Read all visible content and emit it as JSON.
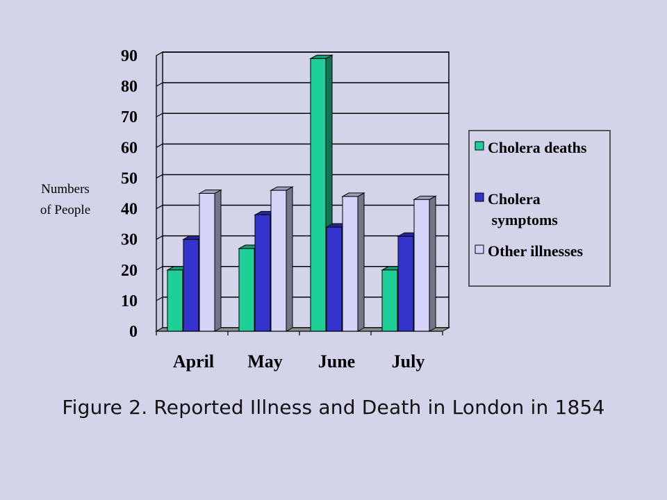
{
  "chart_data": {
    "type": "bar",
    "categories": [
      "April",
      "May",
      "June",
      "July"
    ],
    "series": [
      {
        "name": "Cholera deaths",
        "values": [
          20,
          27,
          89,
          20
        ],
        "color": "#1fcf98"
      },
      {
        "name": "Cholera symptoms",
        "values": [
          30,
          38,
          34,
          31
        ],
        "color": "#3434cc"
      },
      {
        "name": "Other illnesses",
        "values": [
          45,
          46,
          44,
          43
        ],
        "color": "#d4d4f8"
      }
    ],
    "ylim": [
      0,
      90
    ],
    "yticks": [
      "0",
      "10",
      "20",
      "30",
      "40",
      "50",
      "60",
      "70",
      "80",
      "90"
    ],
    "ylabel": [
      "Numbers",
      "of People"
    ],
    "legend_lines": [
      [
        "Cholera deaths"
      ],
      [
        "Cholera",
        "symptoms"
      ],
      [
        "Other illnesses"
      ]
    ],
    "legend_position": "right",
    "grid": true,
    "caption": "Figure 2. Reported Illness and Death in London in 1854"
  }
}
